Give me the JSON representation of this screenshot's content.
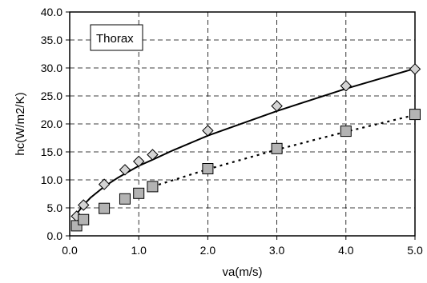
{
  "chart_data": {
    "type": "scatter",
    "title": "",
    "xlabel": "va(m/s)",
    "ylabel": "hc(W/m2/K)",
    "xlim": [
      0,
      5
    ],
    "ylim": [
      0,
      40
    ],
    "xticks": [
      0.0,
      1.0,
      2.0,
      3.0,
      4.0,
      5.0
    ],
    "xtick_labels": [
      "0.0",
      "1.0",
      "2.0",
      "3.0",
      "4.0",
      "5.0"
    ],
    "yticks": [
      0,
      5,
      10,
      15,
      20,
      25,
      30,
      35,
      40
    ],
    "ytick_labels": [
      "0.0",
      "5.0",
      "10.0",
      "15.0",
      "20.0",
      "25.0",
      "30.0",
      "35.0",
      "40.0"
    ],
    "grid": true,
    "legend_text": "Thorax",
    "legend_position": "top-left",
    "series": [
      {
        "marker": "diamond",
        "marker_color": "#d4d4d4",
        "line_style": "solid",
        "x": [
          0.1,
          0.2,
          0.5,
          0.8,
          1.0,
          1.2,
          2.0,
          3.0,
          4.0,
          5.0
        ],
        "y": [
          3.5,
          5.5,
          9.2,
          11.8,
          13.3,
          14.5,
          18.8,
          23.2,
          26.8,
          29.8
        ],
        "fit_x": [
          0.1,
          0.2,
          0.3,
          0.5,
          0.7,
          0.8,
          1.0,
          1.2,
          1.5,
          2.0,
          2.5,
          3.0,
          3.5,
          4.0,
          4.5,
          5.0
        ],
        "fit_y": [
          3.9,
          5.5,
          6.8,
          8.8,
          10.4,
          11.1,
          12.5,
          13.6,
          15.3,
          17.9,
          20.1,
          22.3,
          24.3,
          26.3,
          28.1,
          29.9
        ]
      },
      {
        "marker": "square",
        "marker_color": "#b3b3b3",
        "line_style": "dotted",
        "x": [
          0.1,
          0.2,
          0.5,
          0.8,
          1.0,
          1.2,
          2.0,
          3.0,
          4.0,
          5.0
        ],
        "y": [
          1.8,
          2.9,
          4.9,
          6.6,
          7.6,
          8.8,
          12.0,
          15.6,
          18.7,
          21.7
        ],
        "fit_x": [
          1.2,
          2.0,
          3.0,
          4.0,
          5.0
        ],
        "fit_y": [
          8.8,
          11.9,
          15.4,
          18.6,
          21.6
        ]
      }
    ]
  }
}
